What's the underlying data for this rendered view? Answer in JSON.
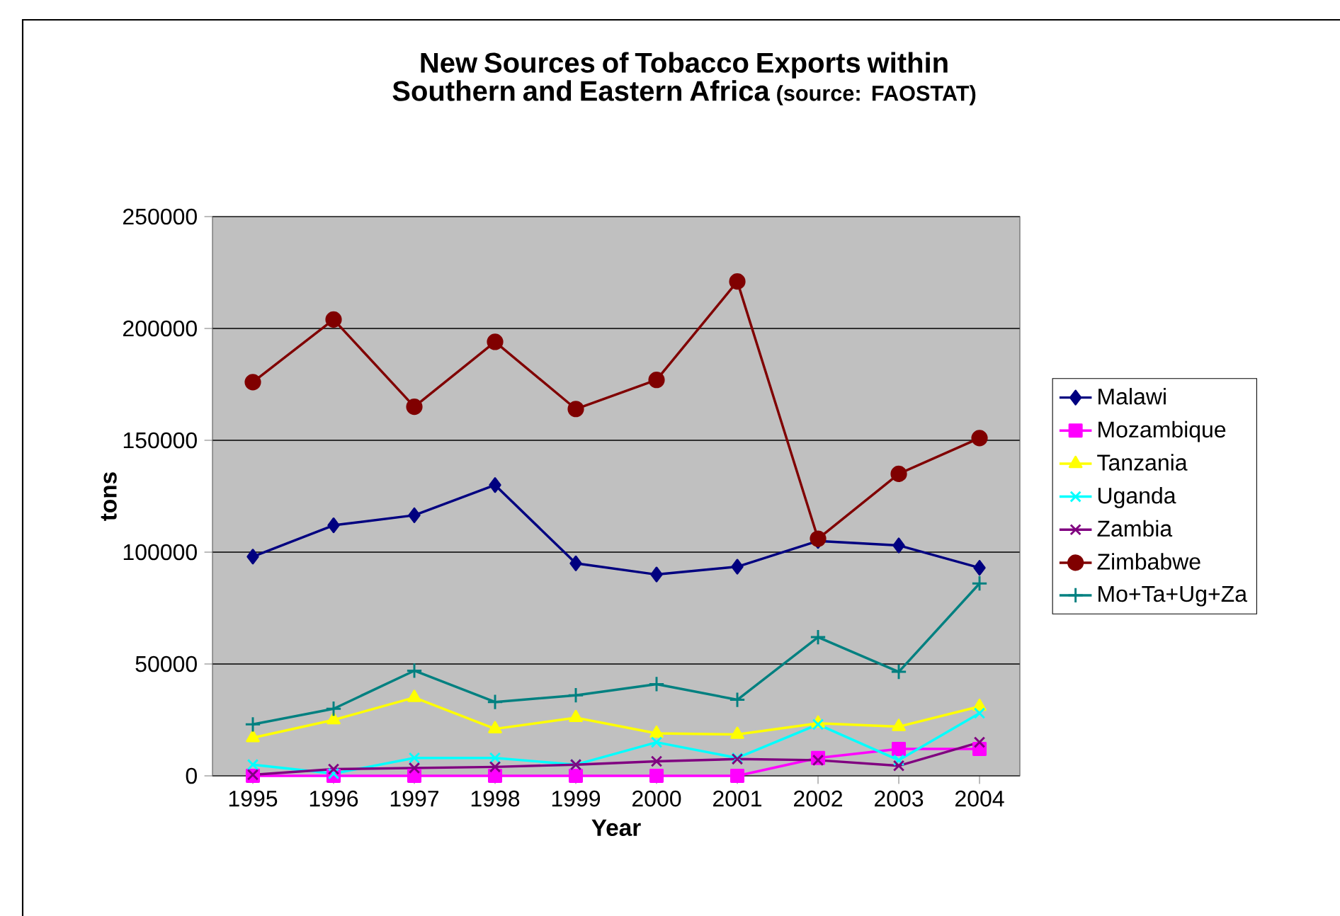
{
  "chart_data": {
    "type": "line",
    "title": "New Sources of Tobacco Exports within Southern and Eastern Africa",
    "annotations": [
      "(source: FAOSTAT)"
    ],
    "xlabel": "Year",
    "ylabel": "tons",
    "categories": [
      "1995",
      "1996",
      "1997",
      "1998",
      "1999",
      "2000",
      "2001",
      "2002",
      "2003",
      "2004"
    ],
    "series": [
      {
        "name": "Malawi",
        "color": "#000080",
        "marker": "diamond",
        "values": [
          98000,
          112000,
          116500,
          130000,
          95000,
          90000,
          93500,
          105000,
          103000,
          93000
        ]
      },
      {
        "name": "Mozambique",
        "color": "#ff00ff",
        "marker": "square",
        "values": [
          0,
          0,
          0,
          0,
          0,
          0,
          0,
          8000,
          12000,
          12000
        ]
      },
      {
        "name": "Tanzania",
        "color": "#ffff00",
        "marker": "triangle",
        "values": [
          17000,
          25000,
          35000,
          21000,
          26000,
          19000,
          18500,
          23500,
          22000,
          31000
        ]
      },
      {
        "name": "Uganda",
        "color": "#00ffff",
        "marker": "cross",
        "values": [
          5000,
          1000,
          8000,
          8000,
          5000,
          15000,
          8000,
          23000,
          7000,
          28000
        ]
      },
      {
        "name": "Zambia",
        "color": "#800080",
        "marker": "cross",
        "values": [
          500,
          3000,
          3500,
          4000,
          5000,
          6500,
          7500,
          7000,
          4500,
          15000
        ]
      },
      {
        "name": "Zimbabwe",
        "color": "#800000",
        "marker": "circle",
        "values": [
          176000,
          204000,
          165000,
          194000,
          164000,
          177000,
          221000,
          106000,
          135000,
          151000
        ]
      },
      {
        "name": "Mo+Ta+Ug+Za",
        "color": "#008080",
        "marker": "plus",
        "values": [
          23000,
          30000,
          47000,
          33000,
          36000,
          41000,
          34000,
          62000,
          46500,
          86000
        ]
      }
    ],
    "ylim": [
      0,
      250000
    ],
    "yticks": [
      0,
      50000,
      100000,
      150000,
      200000,
      250000
    ],
    "grid": "y",
    "legend": "right"
  }
}
